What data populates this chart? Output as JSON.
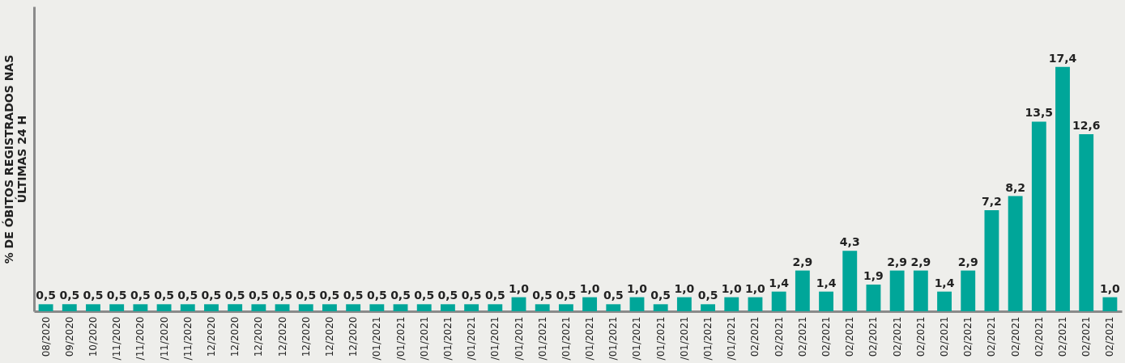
{
  "chart_data": {
    "type": "bar",
    "ylabel": "% DE ÓBITOS REGISTRADOS NAS\nÚLTIMAS 24 H",
    "categories": [
      "08/2020",
      "09/2020",
      "10/2020",
      "/11/2020",
      "/11/2020",
      "/11/2020",
      "/11/2020",
      "12/2020",
      "12/2020",
      "12/2020",
      "12/2020",
      "12/2020",
      "12/2020",
      "12/2020",
      "/01/2021",
      "/01/2021",
      "/01/2021",
      "/01/2021",
      "/01/2021",
      "/01/2021",
      "/01/2021",
      "/01/2021",
      "/01/2021",
      "/01/2021",
      "/01/2021",
      "/01/2021",
      "/01/2021",
      "/01/2021",
      "/01/2021",
      "/01/2021",
      "02/2021",
      "02/2021",
      "02/2021",
      "02/2021",
      "02/2021",
      "02/2021",
      "02/2021",
      "02/2021",
      "02/2021",
      "02/2021",
      "02/2021",
      "02/2021",
      "02/2021",
      "02/2021",
      "02/2021",
      "02/2021"
    ],
    "values": [
      0.5,
      0.5,
      0.5,
      0.5,
      0.5,
      0.5,
      0.5,
      0.5,
      0.5,
      0.5,
      0.5,
      0.5,
      0.5,
      0.5,
      0.5,
      0.5,
      0.5,
      0.5,
      0.5,
      0.5,
      1.0,
      0.5,
      0.5,
      1.0,
      0.5,
      1.0,
      0.5,
      1.0,
      0.5,
      1.0,
      1.0,
      1.4,
      2.9,
      1.4,
      4.3,
      1.9,
      2.9,
      2.9,
      1.4,
      2.9,
      7.2,
      8.2,
      13.5,
      17.4,
      12.6,
      1.0
    ],
    "value_labels": [
      "0,5",
      "0,5",
      "0,5",
      "0,5",
      "0,5",
      "0,5",
      "0,5",
      "0,5",
      "0,5",
      "0,5",
      "0,5",
      "0,5",
      "0,5",
      "0,5",
      "0,5",
      "0,5",
      "0,5",
      "0,5",
      "0,5",
      "0,5",
      "1,0",
      "0,5",
      "0,5",
      "1,0",
      "0,5",
      "1,0",
      "0,5",
      "1,0",
      "0,5",
      "1,0",
      "1,0",
      "1,4",
      "2,9",
      "1,4",
      "4,3",
      "1,9",
      "2,9",
      "2,9",
      "1,4",
      "2,9",
      "7,2",
      "8,2",
      "13,5",
      "17,4",
      "12,6",
      "1,0"
    ],
    "color": "#00a699",
    "ylim": [
      0,
      21.7
    ]
  }
}
